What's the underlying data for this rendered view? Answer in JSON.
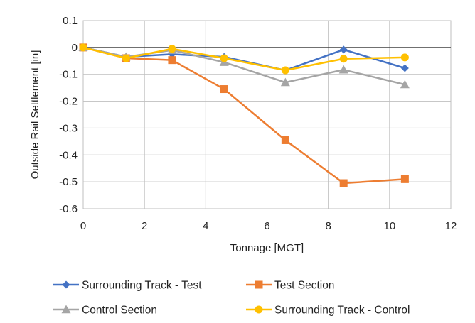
{
  "chart_data": {
    "type": "line",
    "title": "",
    "xlabel": "Tonnage [MGT]",
    "ylabel": "Outside Rail Settlement [in]",
    "xlim": [
      0,
      12
    ],
    "ylim": [
      -0.6,
      0.1
    ],
    "x_ticks": [
      "0",
      "2",
      "4",
      "6",
      "8",
      "10",
      "12"
    ],
    "y_ticks": [
      "0.1",
      "0",
      "-0.1",
      "-0.2",
      "-0.3",
      "-0.4",
      "-0.5",
      "-0.6"
    ],
    "grid": true,
    "legend_position": "bottom",
    "series": [
      {
        "name": "Surrounding Track - Test",
        "color": "#4472C4",
        "marker": "diamond",
        "x": [
          0,
          1.4,
          2.9,
          4.6,
          6.6,
          8.5,
          10.5
        ],
        "y": [
          0,
          -0.035,
          -0.025,
          -0.035,
          -0.085,
          -0.008,
          -0.077
        ]
      },
      {
        "name": "Test Section",
        "color": "#ED7D31",
        "marker": "square",
        "x": [
          0,
          1.4,
          2.9,
          4.6,
          6.6,
          8.5,
          10.5
        ],
        "y": [
          0,
          -0.04,
          -0.047,
          -0.155,
          -0.345,
          -0.505,
          -0.49
        ]
      },
      {
        "name": "Control Section",
        "color": "#A5A5A5",
        "marker": "triangle",
        "x": [
          0,
          1.4,
          2.9,
          4.6,
          6.6,
          8.5,
          10.5
        ],
        "y": [
          0,
          -0.035,
          -0.01,
          -0.055,
          -0.13,
          -0.083,
          -0.138
        ]
      },
      {
        "name": "Surrounding Track - Control",
        "color": "#FFC000",
        "marker": "circle",
        "x": [
          0,
          1.4,
          2.9,
          4.6,
          6.6,
          8.5,
          10.5
        ],
        "y": [
          0,
          -0.04,
          -0.005,
          -0.04,
          -0.085,
          -0.042,
          -0.037
        ]
      }
    ]
  }
}
